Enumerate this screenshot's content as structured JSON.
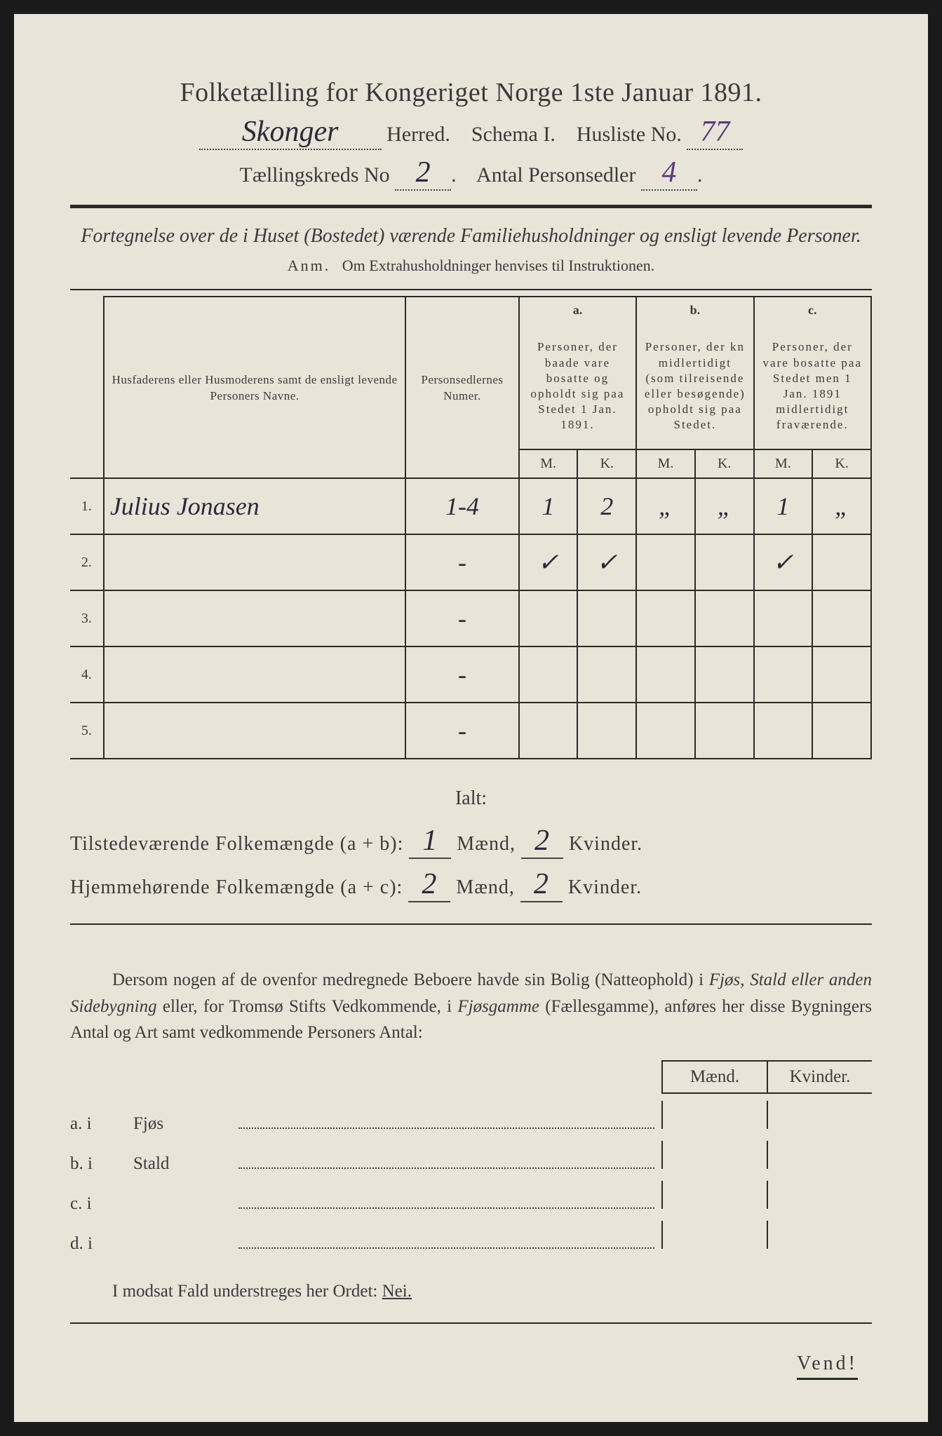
{
  "title": "Folketælling for Kongeriget Norge 1ste Januar 1891.",
  "header": {
    "herred_value": "Skonger",
    "herred_label": "Herred.",
    "schema_label": "Schema I.",
    "husliste_label": "Husliste No.",
    "husliste_value": "77",
    "kreds_label": "Tællingskreds No",
    "kreds_value": "2",
    "antal_label": "Antal Personsedler",
    "antal_value": "4"
  },
  "subtitle": "Fortegnelse over de i Huset (Bostedet) værende Familiehusholdninger og ensligt levende Personer.",
  "anm": {
    "label": "Anm.",
    "text": "Om Extrahusholdninger henvises til Instruktionen."
  },
  "table": {
    "col1_header": "Husfaderens eller Husmoderens samt de ensligt levende Personers Navne.",
    "col2_header": "Personsedlernes Numer.",
    "col_a_label": "a.",
    "col_a_desc": "Personer, der baade vare bosatte og opholdt sig paa Stedet 1 Jan. 1891.",
    "col_b_label": "b.",
    "col_b_desc": "Personer, der kn midlertidigt (som tilreisende eller besøgende) opholdt sig paa Stedet.",
    "col_c_label": "c.",
    "col_c_desc": "Personer, der vare bosatte paa Stedet men 1 Jan. 1891 midlertidigt fraværende.",
    "m_label": "M.",
    "k_label": "K.",
    "rows": [
      {
        "num": "1.",
        "name": "Julius Jonasen",
        "numer": "1-4",
        "a_m": "1",
        "a_k": "2",
        "b_m": "„",
        "b_k": "„",
        "c_m": "1",
        "c_k": "„"
      },
      {
        "num": "2.",
        "name": "",
        "numer": "-",
        "a_m": "✓",
        "a_k": "✓",
        "b_m": "",
        "b_k": "",
        "c_m": "✓",
        "c_k": ""
      },
      {
        "num": "3.",
        "name": "",
        "numer": "-",
        "a_m": "",
        "a_k": "",
        "b_m": "",
        "b_k": "",
        "c_m": "",
        "c_k": ""
      },
      {
        "num": "4.",
        "name": "",
        "numer": "-",
        "a_m": "",
        "a_k": "",
        "b_m": "",
        "b_k": "",
        "c_m": "",
        "c_k": ""
      },
      {
        "num": "5.",
        "name": "",
        "numer": "-",
        "a_m": "",
        "a_k": "",
        "b_m": "",
        "b_k": "",
        "c_m": "",
        "c_k": ""
      }
    ]
  },
  "ialt": {
    "label": "Ialt:",
    "row1_label": "Tilstedeværende Folkemængde (a + b):",
    "row1_m": "1",
    "row1_k": "2",
    "row2_label": "Hjemmehørende Folkemængde (a + c):",
    "row2_m": "2",
    "row2_k": "2",
    "maend": "Mænd,",
    "kvinder": "Kvinder."
  },
  "bottom_para": {
    "text1": "Dersom nogen af de ovenfor medregnede Beboere havde sin Bolig (Natteophold) i ",
    "italic1": "Fjøs, Stald eller anden Sidebygning",
    "text2": " eller, for Tromsø Stifts Vedkommende, i ",
    "italic2": "Fjøsgamme",
    "text3": " (Fællesgamme), anføres her disse Bygningers Antal og Art samt vedkommende Personers Antal:"
  },
  "bottom_table": {
    "maend": "Mænd.",
    "kvinder": "Kvinder.",
    "rows": [
      {
        "label": "a. i",
        "name": "Fjøs"
      },
      {
        "label": "b. i",
        "name": "Stald"
      },
      {
        "label": "c. i",
        "name": ""
      },
      {
        "label": "d. i",
        "name": ""
      }
    ]
  },
  "modsat": {
    "text": "I modsat Fald understreges her Ordet: ",
    "nei": "Nei."
  },
  "vend": "Vend!",
  "colors": {
    "paper": "#e8e4d8",
    "ink": "#3a3a3a",
    "handwriting": "#2a2a3a",
    "purple_ink": "#5a3a7a",
    "background": "#1a1a1a"
  }
}
